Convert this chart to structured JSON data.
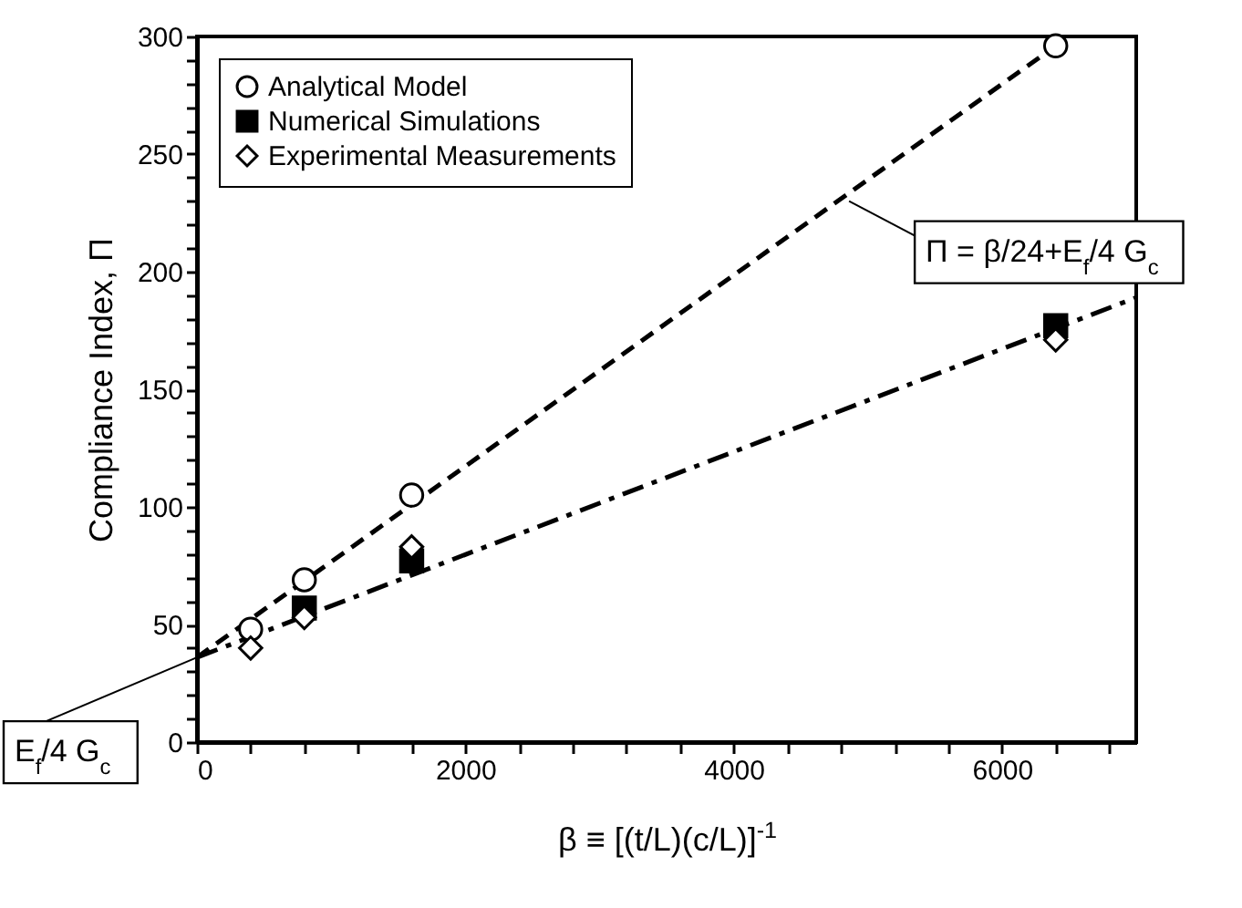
{
  "chart_data": {
    "type": "scatter",
    "xlabel": "β ≡ [(t/L)(c/L)]$^{-1}$",
    "ylabel": "Compliance Index,  Π",
    "xlim": [
      0,
      7000
    ],
    "ylim": [
      0,
      300
    ],
    "xticks": [
      0,
      {
        "value": 400,
        "label": null
      },
      {
        "value": 800,
        "label": null
      },
      {
        "value": 1200,
        "label": null
      },
      {
        "value": 1600,
        "label": null
      },
      2000,
      {
        "value": 2400,
        "label": null
      },
      {
        "value": 2800,
        "label": null
      },
      {
        "value": 3200,
        "label": null
      },
      {
        "value": 3600,
        "label": null
      },
      4000,
      {
        "value": 4400,
        "label": null
      },
      {
        "value": 4800,
        "label": null
      },
      {
        "value": 5200,
        "label": null
      },
      {
        "value": 5600,
        "label": null
      },
      6000,
      {
        "value": 6400,
        "label": null
      },
      {
        "value": 6800,
        "label": null
      }
    ],
    "yticks": [
      0,
      {
        "value": 10,
        "label": null
      },
      {
        "value": 20,
        "label": null
      },
      {
        "value": 30,
        "label": null
      },
      {
        "value": 40,
        "label": null
      },
      50,
      {
        "value": 60,
        "label": null
      },
      {
        "value": 70,
        "label": null
      },
      {
        "value": 80,
        "label": null
      },
      {
        "value": 90,
        "label": null
      },
      100,
      {
        "value": 110,
        "label": null
      },
      {
        "value": 120,
        "label": null
      },
      {
        "value": 130,
        "label": null
      },
      {
        "value": 140,
        "label": null
      },
      150,
      {
        "value": 160,
        "label": null
      },
      {
        "value": 170,
        "label": null
      },
      {
        "value": 180,
        "label": null
      },
      {
        "value": 190,
        "label": null
      },
      200,
      {
        "value": 210,
        "label": null
      },
      {
        "value": 220,
        "label": null
      },
      {
        "value": 230,
        "label": null
      },
      {
        "value": 240,
        "label": null
      },
      250,
      {
        "value": 260,
        "label": null
      },
      {
        "value": 270,
        "label": null
      },
      {
        "value": 280,
        "label": null
      },
      {
        "value": 290,
        "label": null
      },
      300
    ],
    "legend": "top left",
    "annotations": [
      {
        "text": "Π = β/24+E$_{f}$/4 G$_{c}$",
        "x": 4860,
        "y": 230
      },
      {
        "text": "E$_{f}$/4 G$_{c}$",
        "x": 0,
        "y": 36
      }
    ],
    "x": [
      400,
      800,
      1600,
      6400
    ],
    "series": [
      {
        "type": "line",
        "line_style": "dashed",
        "color": "#000000",
        "x": [
          0,
          6400
        ],
        "values": [
          36,
          296
        ]
      },
      {
        "type": "line",
        "line_style": "dashdot",
        "color": "#000000",
        "x": [
          0,
          7000
        ],
        "values": [
          36,
          189
        ]
      },
      {
        "name": "Analytical Model",
        "marker": "circle",
        "color": "#000000",
        "values": [
          48,
          69,
          105,
          296
        ]
      },
      {
        "name": "Numerical Simulations",
        "marker": "square",
        "color": "#000000",
        "values": [
          null,
          57,
          77,
          177
        ]
      },
      {
        "name": "Experimental Measurements",
        "marker": "diamond",
        "color": "#000000",
        "values": [
          40,
          53,
          83,
          171
        ]
      }
    ]
  }
}
